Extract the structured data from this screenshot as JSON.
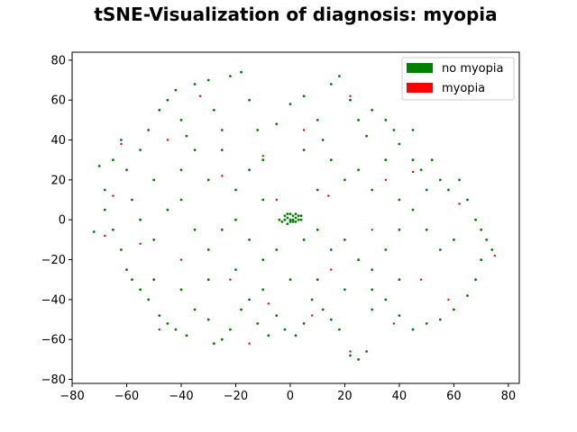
{
  "chart_data": {
    "type": "scatter",
    "title": "tSNE-Visualization of diagnosis: myopia",
    "xlabel": "",
    "ylabel": "",
    "xlim": [
      -80,
      84
    ],
    "ylim": [
      -82,
      84
    ],
    "xticks": [
      -80,
      -60,
      -40,
      -20,
      0,
      20,
      40,
      60,
      80
    ],
    "yticks": [
      -80,
      -60,
      -40,
      -20,
      0,
      20,
      40,
      60,
      80
    ],
    "xtick_labels": [
      "−80",
      "−60",
      "−40",
      "−20",
      "0",
      "20",
      "40",
      "60",
      "80"
    ],
    "ytick_labels": [
      "−80",
      "−60",
      "−40",
      "−20",
      "0",
      "20",
      "40",
      "60",
      "80"
    ],
    "grid": false,
    "legend_placement": "top-right",
    "series": [
      {
        "name": "no myopia",
        "color": "#008000",
        "points": [
          [
            -70,
            27
          ],
          [
            -68,
            15
          ],
          [
            -65,
            30
          ],
          [
            -62,
            40
          ],
          [
            -60,
            25
          ],
          [
            -58,
            10
          ],
          [
            -55,
            35
          ],
          [
            -52,
            45
          ],
          [
            -50,
            20
          ],
          [
            -48,
            55
          ],
          [
            -45,
            60
          ],
          [
            -42,
            65
          ],
          [
            -40,
            50
          ],
          [
            -38,
            42
          ],
          [
            -35,
            68
          ],
          [
            -30,
            70
          ],
          [
            -28,
            55
          ],
          [
            -25,
            35
          ],
          [
            -22,
            72
          ],
          [
            -18,
            74
          ],
          [
            -15,
            60
          ],
          [
            -12,
            45
          ],
          [
            -10,
            30
          ],
          [
            -5,
            48
          ],
          [
            0,
            58
          ],
          [
            5,
            62
          ],
          [
            10,
            50
          ],
          [
            12,
            40
          ],
          [
            15,
            68
          ],
          [
            18,
            72
          ],
          [
            22,
            60
          ],
          [
            25,
            50
          ],
          [
            28,
            42
          ],
          [
            30,
            55
          ],
          [
            35,
            50
          ],
          [
            38,
            45
          ],
          [
            40,
            38
          ],
          [
            45,
            30
          ],
          [
            48,
            25
          ],
          [
            52,
            30
          ],
          [
            55,
            20
          ],
          [
            58,
            15
          ],
          [
            62,
            20
          ],
          [
            65,
            10
          ],
          [
            68,
            0
          ],
          [
            70,
            -5
          ],
          [
            72,
            -10
          ],
          [
            74,
            -15
          ],
          [
            70,
            -20
          ],
          [
            68,
            -30
          ],
          [
            65,
            -38
          ],
          [
            60,
            -45
          ],
          [
            55,
            -50
          ],
          [
            50,
            -52
          ],
          [
            45,
            -55
          ],
          [
            40,
            -48
          ],
          [
            35,
            -40
          ],
          [
            30,
            -45
          ],
          [
            28,
            -66
          ],
          [
            25,
            -70
          ],
          [
            22,
            -68
          ],
          [
            18,
            -55
          ],
          [
            15,
            -50
          ],
          [
            12,
            -45
          ],
          [
            8,
            -40
          ],
          [
            5,
            -52
          ],
          [
            2,
            -58
          ],
          [
            -2,
            -55
          ],
          [
            -5,
            -48
          ],
          [
            -8,
            -58
          ],
          [
            -12,
            -52
          ],
          [
            -15,
            -40
          ],
          [
            -18,
            -45
          ],
          [
            -22,
            -55
          ],
          [
            -25,
            -60
          ],
          [
            -28,
            -62
          ],
          [
            -30,
            -50
          ],
          [
            -35,
            -45
          ],
          [
            -38,
            -58
          ],
          [
            -42,
            -55
          ],
          [
            -45,
            -52
          ],
          [
            -48,
            -48
          ],
          [
            -52,
            -40
          ],
          [
            -55,
            -35
          ],
          [
            -58,
            -30
          ],
          [
            -60,
            -25
          ],
          [
            -62,
            -15
          ],
          [
            -65,
            -5
          ],
          [
            -68,
            5
          ],
          [
            -72,
            -6
          ],
          [
            -55,
            0
          ],
          [
            -50,
            -10
          ],
          [
            -45,
            5
          ],
          [
            -40,
            10
          ],
          [
            -35,
            -5
          ],
          [
            -30,
            -15
          ],
          [
            -25,
            -5
          ],
          [
            -20,
            0
          ],
          [
            -15,
            -10
          ],
          [
            -10,
            -20
          ],
          [
            -5,
            -15
          ],
          [
            5,
            -10
          ],
          [
            10,
            -5
          ],
          [
            15,
            -15
          ],
          [
            20,
            -10
          ],
          [
            25,
            -20
          ],
          [
            30,
            -25
          ],
          [
            35,
            -15
          ],
          [
            40,
            -5
          ],
          [
            45,
            5
          ],
          [
            50,
            -5
          ],
          [
            55,
            -15
          ],
          [
            60,
            -10
          ],
          [
            -40,
            25
          ],
          [
            -30,
            20
          ],
          [
            -20,
            15
          ],
          [
            -10,
            10
          ],
          [
            10,
            15
          ],
          [
            20,
            20
          ],
          [
            30,
            15
          ],
          [
            40,
            10
          ],
          [
            50,
            15
          ],
          [
            -35,
            35
          ],
          [
            -25,
            45
          ],
          [
            -15,
            25
          ],
          [
            5,
            35
          ],
          [
            15,
            30
          ],
          [
            25,
            25
          ],
          [
            35,
            30
          ],
          [
            45,
            45
          ],
          [
            -50,
            -30
          ],
          [
            -40,
            -35
          ],
          [
            -30,
            -30
          ],
          [
            -20,
            -25
          ],
          [
            -10,
            -35
          ],
          [
            0,
            -30
          ],
          [
            10,
            -30
          ],
          [
            20,
            -35
          ],
          [
            30,
            -35
          ],
          [
            40,
            -30
          ],
          [
            -2,
            0
          ],
          [
            -1,
            1
          ],
          [
            0,
            0
          ],
          [
            1,
            2
          ],
          [
            2,
            1
          ],
          [
            3,
            0
          ],
          [
            -3,
            -1
          ],
          [
            -1,
            -2
          ],
          [
            1,
            -1
          ],
          [
            0,
            3
          ],
          [
            2,
            3
          ],
          [
            -2,
            2
          ],
          [
            4,
            2
          ],
          [
            -4,
            0
          ],
          [
            1,
            0
          ],
          [
            0,
            -1
          ],
          [
            3,
            2
          ],
          [
            -1,
            3
          ],
          [
            2,
            -1
          ],
          [
            4,
            0
          ]
        ]
      },
      {
        "name": "myopia",
        "color": "#ff0000",
        "points": [
          [
            -62,
            38
          ],
          [
            -45,
            40
          ],
          [
            -33,
            62
          ],
          [
            -10,
            32
          ],
          [
            14,
            12
          ],
          [
            22,
            62
          ],
          [
            45,
            24
          ],
          [
            62,
            8
          ],
          [
            75,
            -18
          ],
          [
            58,
            -40
          ],
          [
            38,
            -52
          ],
          [
            22,
            -66
          ],
          [
            8,
            -48
          ],
          [
            -8,
            -42
          ],
          [
            -22,
            -30
          ],
          [
            -40,
            -20
          ],
          [
            -55,
            -12
          ],
          [
            -65,
            12
          ],
          [
            -25,
            22
          ],
          [
            15,
            -25
          ],
          [
            30,
            -5
          ],
          [
            48,
            -30
          ],
          [
            -5,
            10
          ],
          [
            5,
            45
          ],
          [
            -48,
            -55
          ],
          [
            -15,
            -62
          ],
          [
            35,
            20
          ],
          [
            -68,
            -8
          ]
        ]
      }
    ]
  }
}
